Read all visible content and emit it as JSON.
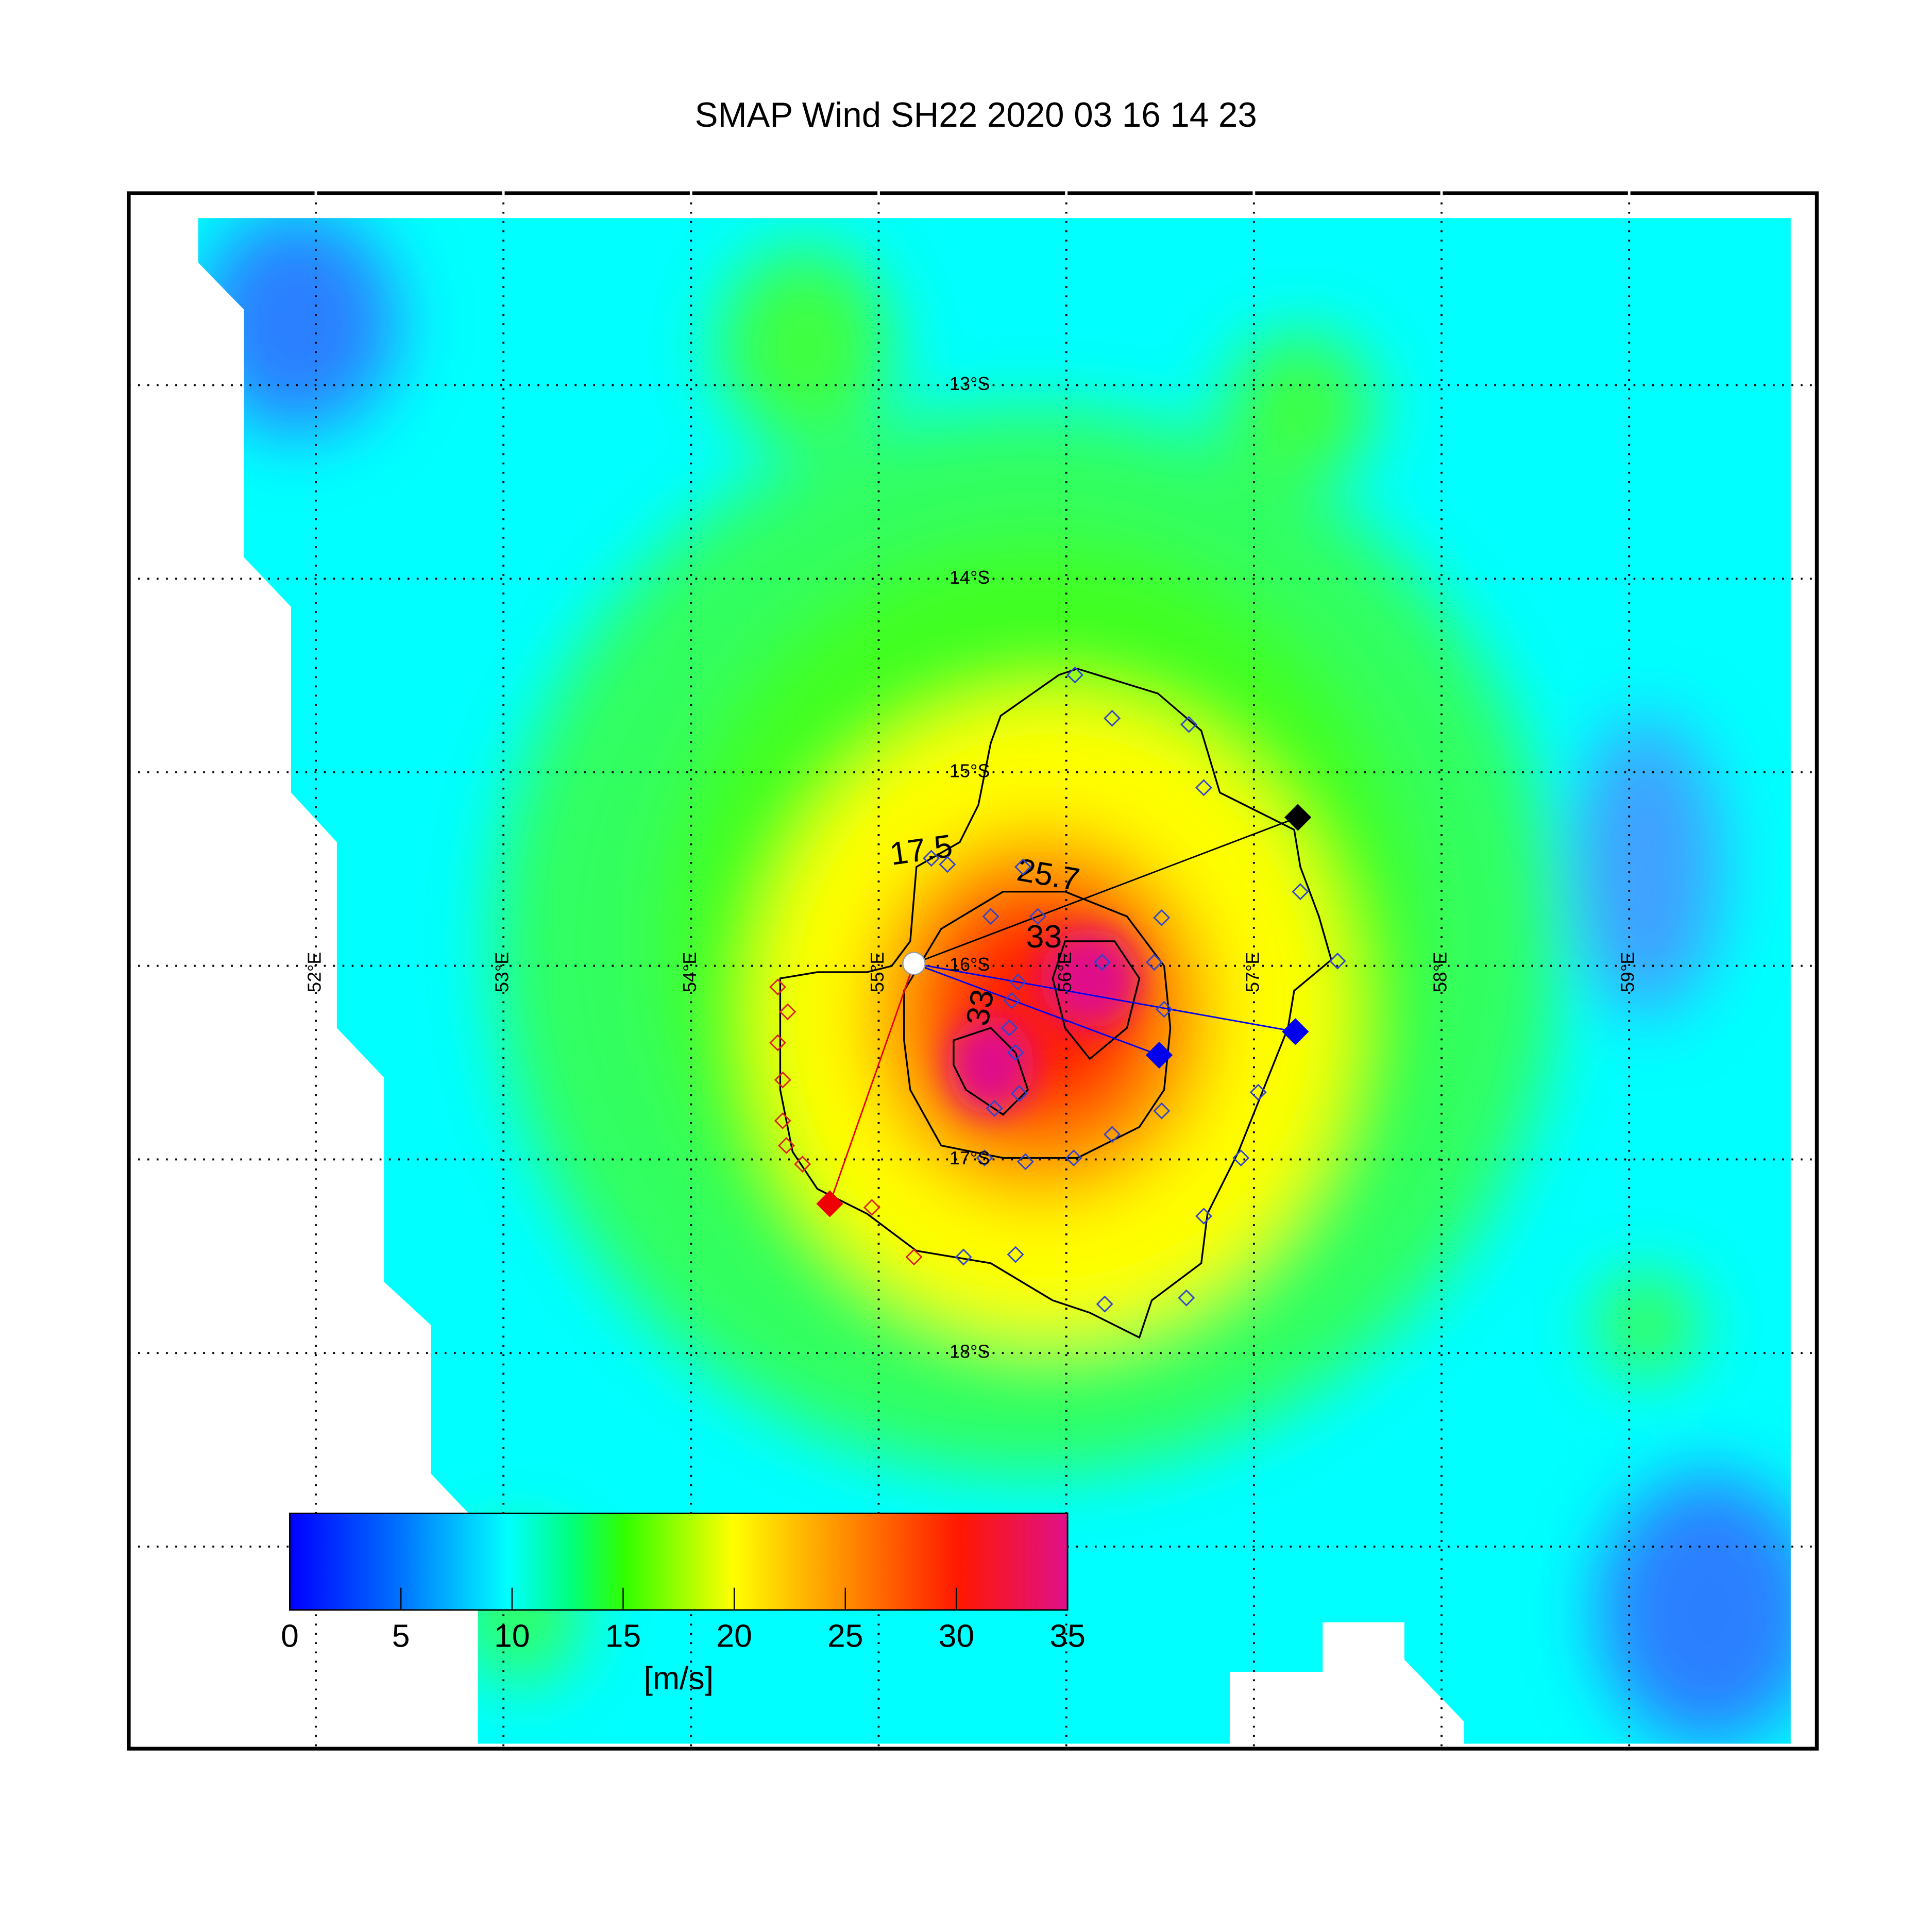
{
  "title": "SMAP Wind  SH22  2020 03 16 14 23",
  "map": {
    "lon_labels": [
      "52°E",
      "53°E",
      "54°E",
      "55°E",
      "56°E",
      "57°E",
      "58°E",
      "59°E"
    ],
    "lat_labels": [
      "13°S",
      "14°S",
      "15°S",
      "16°S",
      "17°S",
      "18°S"
    ],
    "contour_labels": [
      "17.5",
      "25.7",
      "33",
      "33"
    ]
  },
  "colorbar": {
    "lim": [
      0,
      35
    ],
    "ticks": [
      0,
      5,
      10,
      15,
      20,
      25,
      30,
      35
    ],
    "label": "[m/s]"
  }
}
